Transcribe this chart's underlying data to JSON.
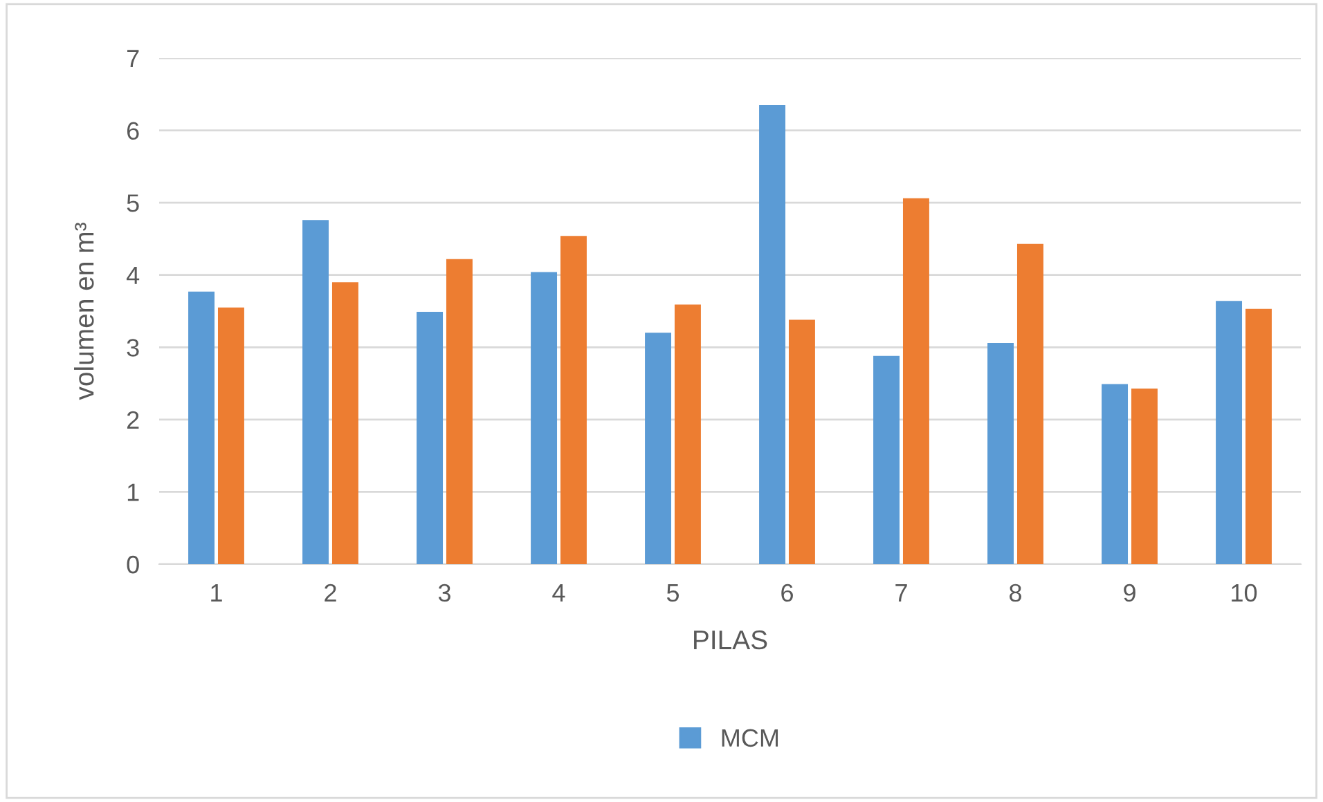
{
  "chart_data": {
    "type": "bar",
    "xlabel": "PILAS",
    "ylabel": "volumen en m³",
    "categories": [
      "1",
      "2",
      "3",
      "4",
      "5",
      "6",
      "7",
      "8",
      "9",
      "10"
    ],
    "series": [
      {
        "name": "MCM",
        "color": "#5b9bd5",
        "values": [
          3.77,
          4.76,
          3.49,
          4.04,
          3.2,
          6.35,
          2.88,
          3.06,
          2.49,
          3.64
        ]
      },
      {
        "color": "#ed7d31",
        "values": [
          3.55,
          3.9,
          4.22,
          4.54,
          3.59,
          3.38,
          5.06,
          4.43,
          2.43,
          3.53
        ]
      }
    ],
    "ylim": [
      0,
      7
    ],
    "yticks": [
      0,
      1,
      2,
      3,
      4,
      5,
      6,
      7
    ],
    "grid": "y",
    "legend": "bottom"
  }
}
